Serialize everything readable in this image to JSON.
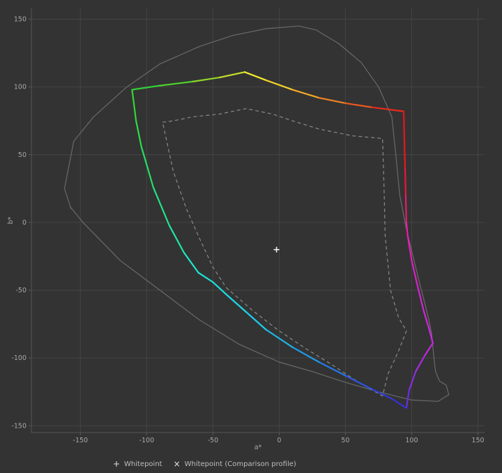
{
  "chart_data": {
    "type": "line",
    "xlabel": "a*",
    "ylabel": "b*",
    "xlim": [
      -187,
      155
    ],
    "ylim": [
      -155,
      158
    ],
    "x_ticks": [
      -150,
      -100,
      -50,
      0,
      50,
      100,
      150
    ],
    "y_ticks": [
      -150,
      -100,
      -50,
      0,
      50,
      100,
      150
    ],
    "grid": true,
    "legend_position": "bottom-left",
    "legend": [
      {
        "glyph": "+",
        "label": "Whitepoint"
      },
      {
        "glyph": "×",
        "label": "Whitepoint (Comparison profile)"
      }
    ],
    "whitepoint": {
      "x": -2,
      "y": -20
    },
    "series": [
      {
        "style": "solid-thin",
        "color": "#6a6a6a",
        "points": [
          [
            -157,
            10
          ],
          [
            -162,
            25
          ],
          [
            -155,
            60
          ],
          [
            -140,
            78
          ],
          [
            -115,
            100
          ],
          [
            -90,
            117
          ],
          [
            -60,
            130
          ],
          [
            -35,
            138
          ],
          [
            -10,
            143
          ],
          [
            15,
            145
          ],
          [
            28,
            142
          ],
          [
            45,
            132
          ],
          [
            62,
            118
          ],
          [
            75,
            100
          ],
          [
            85,
            78
          ],
          [
            88,
            50
          ],
          [
            91,
            20
          ],
          [
            96,
            -5
          ],
          [
            101,
            -25
          ],
          [
            106,
            -45
          ],
          [
            110,
            -60
          ],
          [
            113,
            -72
          ],
          [
            115,
            -82
          ],
          [
            116,
            -92
          ],
          [
            117,
            -102
          ],
          [
            118,
            -110
          ],
          [
            121,
            -117
          ],
          [
            126,
            -120
          ],
          [
            128,
            -127
          ],
          [
            120,
            -132
          ],
          [
            100,
            -131
          ],
          [
            75,
            -125
          ],
          [
            50,
            -118
          ],
          [
            25,
            -110
          ],
          [
            0,
            -103
          ],
          [
            -30,
            -90
          ],
          [
            -60,
            -72
          ],
          [
            -90,
            -50
          ],
          [
            -120,
            -28
          ],
          [
            -148,
            0
          ],
          [
            -158,
            12
          ]
        ]
      },
      {
        "style": "dashed",
        "color": "#8a8a8a",
        "points": [
          [
            -88,
            74
          ],
          [
            -80,
            75
          ],
          [
            -65,
            78
          ],
          [
            -45,
            80
          ],
          [
            -25,
            84
          ],
          [
            -5,
            80
          ],
          [
            10,
            75
          ],
          [
            30,
            69
          ],
          [
            55,
            64
          ],
          [
            78,
            62
          ],
          [
            79,
            30
          ],
          [
            80,
            -10
          ],
          [
            84,
            -50
          ],
          [
            90,
            -70
          ],
          [
            96,
            -80
          ],
          [
            90,
            -95
          ],
          [
            82,
            -112
          ],
          [
            78,
            -128
          ],
          [
            60,
            -118
          ],
          [
            40,
            -105
          ],
          [
            20,
            -93
          ],
          [
            0,
            -80
          ],
          [
            -20,
            -65
          ],
          [
            -40,
            -48
          ],
          [
            -50,
            -33
          ],
          [
            -60,
            -12
          ],
          [
            -70,
            10
          ],
          [
            -80,
            38
          ],
          [
            -88,
            74
          ]
        ]
      },
      {
        "style": "gradient",
        "points": [
          [
            -111,
            98
          ],
          [
            -90,
            101
          ],
          [
            -65,
            104
          ],
          [
            -45,
            107
          ],
          [
            -26,
            111
          ],
          [
            -10,
            105
          ],
          [
            10,
            98
          ],
          [
            30,
            92
          ],
          [
            50,
            88
          ],
          [
            70,
            85
          ],
          [
            94,
            82
          ],
          [
            94.5,
            60
          ],
          [
            95,
            40
          ],
          [
            95.5,
            20
          ],
          [
            96,
            0
          ],
          [
            97,
            -10
          ],
          [
            100,
            -28
          ],
          [
            104,
            -45
          ],
          [
            109,
            -65
          ],
          [
            113,
            -78
          ],
          [
            116,
            -89
          ],
          [
            110,
            -98
          ],
          [
            103,
            -110
          ],
          [
            98,
            -124
          ],
          [
            96,
            -137
          ],
          [
            85,
            -130
          ],
          [
            70,
            -123
          ],
          [
            50,
            -113
          ],
          [
            30,
            -103
          ],
          [
            10,
            -92
          ],
          [
            -10,
            -79
          ],
          [
            -25,
            -66
          ],
          [
            -40,
            -53
          ],
          [
            -50,
            -44
          ],
          [
            -61,
            -37
          ],
          [
            -72,
            -22
          ],
          [
            -83,
            -2
          ],
          [
            -95,
            26
          ],
          [
            -104,
            56
          ],
          [
            -108,
            75
          ],
          [
            -111,
            98
          ]
        ],
        "colors": [
          "#35d438",
          "#4fd42c",
          "#8fd628",
          "#c9e02a",
          "#f3ec2e",
          "#f5d02a",
          "#f4a826",
          "#f28222",
          "#ef5a1f",
          "#ea2a1c",
          "#e8151c",
          "#e8161e",
          "#e81740",
          "#e81a6c",
          "#e81ca5",
          "#e51db8",
          "#e01fc8",
          "#d921d8",
          "#d324dc",
          "#cc27e0",
          "#c52ae0",
          "#a92ae0",
          "#8a2ce0",
          "#6a2de0",
          "#3730d6",
          "#2f3cd8",
          "#2a56de",
          "#2479e4",
          "#1f9ae8",
          "#1db8ea",
          "#1cccea",
          "#1cd8e4",
          "#1ce0e0",
          "#1de6d6",
          "#1ee8c8",
          "#1fe6a8",
          "#22e286",
          "#26de62",
          "#2cda4a",
          "#33d63a"
        ]
      }
    ]
  }
}
